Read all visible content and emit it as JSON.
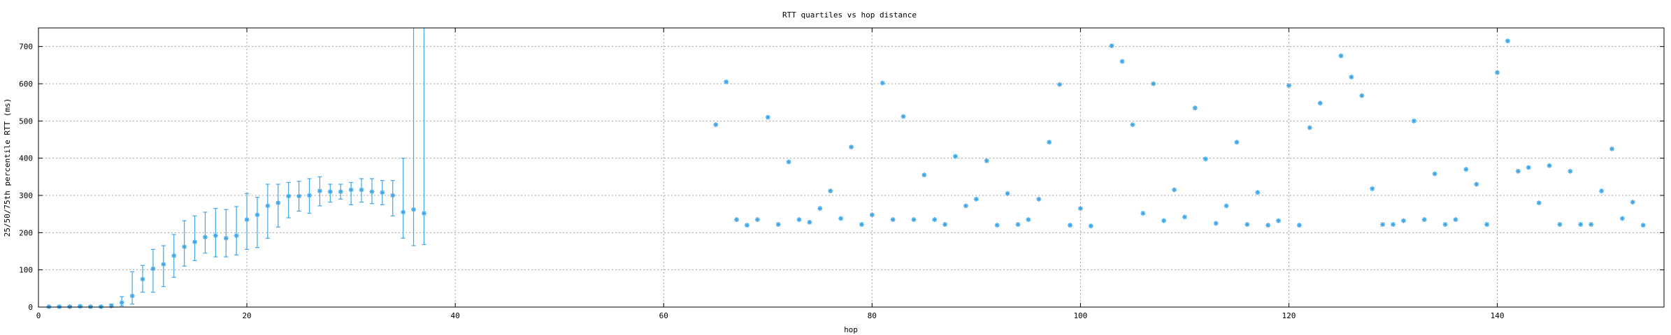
{
  "chart_data": {
    "type": "scatter",
    "title": "RTT quartiles vs hop distance",
    "xlabel": "hop",
    "ylabel": "25/50/75th percentile RTT (ms)",
    "xlim": [
      0,
      156
    ],
    "ylim": [
      0,
      750
    ],
    "xticks": [
      0,
      20,
      40,
      60,
      80,
      100,
      120,
      140
    ],
    "yticks": [
      0,
      100,
      200,
      300,
      400,
      500,
      600,
      700
    ],
    "grid": true,
    "legend": "none",
    "color": "#3fa7e8",
    "series": [
      {
        "kind": "median-with-quartile-errorbars",
        "points": [
          {
            "x": 1,
            "y": 1,
            "lo": 0,
            "hi": 2
          },
          {
            "x": 2,
            "y": 1,
            "lo": 0,
            "hi": 2
          },
          {
            "x": 3,
            "y": 1,
            "lo": 0,
            "hi": 3
          },
          {
            "x": 4,
            "y": 2,
            "lo": 0,
            "hi": 5
          },
          {
            "x": 5,
            "y": 1,
            "lo": 0,
            "hi": 3
          },
          {
            "x": 6,
            "y": 1,
            "lo": 0,
            "hi": 2
          },
          {
            "x": 7,
            "y": 3,
            "lo": 0,
            "hi": 8
          },
          {
            "x": 8,
            "y": 12,
            "lo": 3,
            "hi": 28
          },
          {
            "x": 9,
            "y": 30,
            "lo": 8,
            "hi": 95
          },
          {
            "x": 10,
            "y": 75,
            "lo": 40,
            "hi": 112
          },
          {
            "x": 11,
            "y": 103,
            "lo": 40,
            "hi": 155
          },
          {
            "x": 12,
            "y": 115,
            "lo": 55,
            "hi": 165
          },
          {
            "x": 13,
            "y": 138,
            "lo": 80,
            "hi": 195
          },
          {
            "x": 14,
            "y": 162,
            "lo": 110,
            "hi": 232
          },
          {
            "x": 15,
            "y": 175,
            "lo": 125,
            "hi": 245
          },
          {
            "x": 16,
            "y": 188,
            "lo": 145,
            "hi": 255
          },
          {
            "x": 17,
            "y": 192,
            "lo": 135,
            "hi": 265
          },
          {
            "x": 18,
            "y": 185,
            "lo": 135,
            "hi": 262
          },
          {
            "x": 19,
            "y": 192,
            "lo": 140,
            "hi": 270
          },
          {
            "x": 20,
            "y": 235,
            "lo": 155,
            "hi": 305
          },
          {
            "x": 21,
            "y": 248,
            "lo": 160,
            "hi": 295
          },
          {
            "x": 22,
            "y": 272,
            "lo": 185,
            "hi": 330
          },
          {
            "x": 23,
            "y": 280,
            "lo": 215,
            "hi": 330
          },
          {
            "x": 24,
            "y": 298,
            "lo": 240,
            "hi": 335
          },
          {
            "x": 25,
            "y": 298,
            "lo": 258,
            "hi": 338
          },
          {
            "x": 26,
            "y": 300,
            "lo": 252,
            "hi": 345
          },
          {
            "x": 27,
            "y": 312,
            "lo": 272,
            "hi": 350
          },
          {
            "x": 28,
            "y": 310,
            "lo": 282,
            "hi": 330
          },
          {
            "x": 29,
            "y": 310,
            "lo": 290,
            "hi": 330
          },
          {
            "x": 30,
            "y": 315,
            "lo": 275,
            "hi": 335
          },
          {
            "x": 31,
            "y": 315,
            "lo": 282,
            "hi": 345
          },
          {
            "x": 32,
            "y": 310,
            "lo": 278,
            "hi": 345
          },
          {
            "x": 33,
            "y": 308,
            "lo": 275,
            "hi": 340
          },
          {
            "x": 34,
            "y": 300,
            "lo": 245,
            "hi": 340
          },
          {
            "x": 35,
            "y": 255,
            "lo": 185,
            "hi": 400
          },
          {
            "x": 36,
            "y": 262,
            "lo": 165,
            "hi": 750
          },
          {
            "x": 37,
            "y": 252,
            "lo": 168,
            "hi": 750
          }
        ]
      },
      {
        "kind": "points",
        "points": [
          {
            "x": 65,
            "y": 490
          },
          {
            "x": 66,
            "y": 605
          },
          {
            "x": 67,
            "y": 235
          },
          {
            "x": 68,
            "y": 220
          },
          {
            "x": 69,
            "y": 235
          },
          {
            "x": 70,
            "y": 510
          },
          {
            "x": 71,
            "y": 222
          },
          {
            "x": 72,
            "y": 390
          },
          {
            "x": 73,
            "y": 235
          },
          {
            "x": 74,
            "y": 228
          },
          {
            "x": 75,
            "y": 265
          },
          {
            "x": 76,
            "y": 312
          },
          {
            "x": 77,
            "y": 238
          },
          {
            "x": 78,
            "y": 430
          },
          {
            "x": 79,
            "y": 222
          },
          {
            "x": 80,
            "y": 248
          },
          {
            "x": 81,
            "y": 602
          },
          {
            "x": 82,
            "y": 235
          },
          {
            "x": 83,
            "y": 512
          },
          {
            "x": 84,
            "y": 235
          },
          {
            "x": 85,
            "y": 355
          },
          {
            "x": 86,
            "y": 235
          },
          {
            "x": 87,
            "y": 222
          },
          {
            "x": 88,
            "y": 405
          },
          {
            "x": 89,
            "y": 272
          },
          {
            "x": 90,
            "y": 290
          },
          {
            "x": 91,
            "y": 393
          },
          {
            "x": 92,
            "y": 220
          },
          {
            "x": 93,
            "y": 305
          },
          {
            "x": 94,
            "y": 222
          },
          {
            "x": 95,
            "y": 235
          },
          {
            "x": 96,
            "y": 290
          },
          {
            "x": 97,
            "y": 443
          },
          {
            "x": 98,
            "y": 598
          },
          {
            "x": 99,
            "y": 220
          },
          {
            "x": 100,
            "y": 265
          },
          {
            "x": 101,
            "y": 218
          },
          {
            "x": 103,
            "y": 702
          },
          {
            "x": 104,
            "y": 660
          },
          {
            "x": 105,
            "y": 490
          },
          {
            "x": 106,
            "y": 252
          },
          {
            "x": 107,
            "y": 600
          },
          {
            "x": 108,
            "y": 232
          },
          {
            "x": 109,
            "y": 315
          },
          {
            "x": 110,
            "y": 242
          },
          {
            "x": 111,
            "y": 535
          },
          {
            "x": 112,
            "y": 398
          },
          {
            "x": 113,
            "y": 225
          },
          {
            "x": 114,
            "y": 272
          },
          {
            "x": 115,
            "y": 443
          },
          {
            "x": 116,
            "y": 222
          },
          {
            "x": 117,
            "y": 308
          },
          {
            "x": 118,
            "y": 220
          },
          {
            "x": 119,
            "y": 232
          },
          {
            "x": 120,
            "y": 595
          },
          {
            "x": 121,
            "y": 220
          },
          {
            "x": 122,
            "y": 482
          },
          {
            "x": 123,
            "y": 548
          },
          {
            "x": 125,
            "y": 675
          },
          {
            "x": 126,
            "y": 618
          },
          {
            "x": 127,
            "y": 568
          },
          {
            "x": 128,
            "y": 318
          },
          {
            "x": 129,
            "y": 222
          },
          {
            "x": 130,
            "y": 222
          },
          {
            "x": 131,
            "y": 232
          },
          {
            "x": 132,
            "y": 500
          },
          {
            "x": 133,
            "y": 235
          },
          {
            "x": 134,
            "y": 358
          },
          {
            "x": 135,
            "y": 222
          },
          {
            "x": 136,
            "y": 235
          },
          {
            "x": 137,
            "y": 370
          },
          {
            "x": 138,
            "y": 330
          },
          {
            "x": 139,
            "y": 222
          },
          {
            "x": 140,
            "y": 630
          },
          {
            "x": 141,
            "y": 715
          },
          {
            "x": 142,
            "y": 365
          },
          {
            "x": 143,
            "y": 375
          },
          {
            "x": 144,
            "y": 280
          },
          {
            "x": 145,
            "y": 380
          },
          {
            "x": 146,
            "y": 222
          },
          {
            "x": 147,
            "y": 365
          },
          {
            "x": 148,
            "y": 222
          },
          {
            "x": 149,
            "y": 222
          },
          {
            "x": 150,
            "y": 312
          },
          {
            "x": 151,
            "y": 425
          },
          {
            "x": 152,
            "y": 238
          },
          {
            "x": 153,
            "y": 282
          },
          {
            "x": 154,
            "y": 220
          }
        ]
      }
    ]
  }
}
